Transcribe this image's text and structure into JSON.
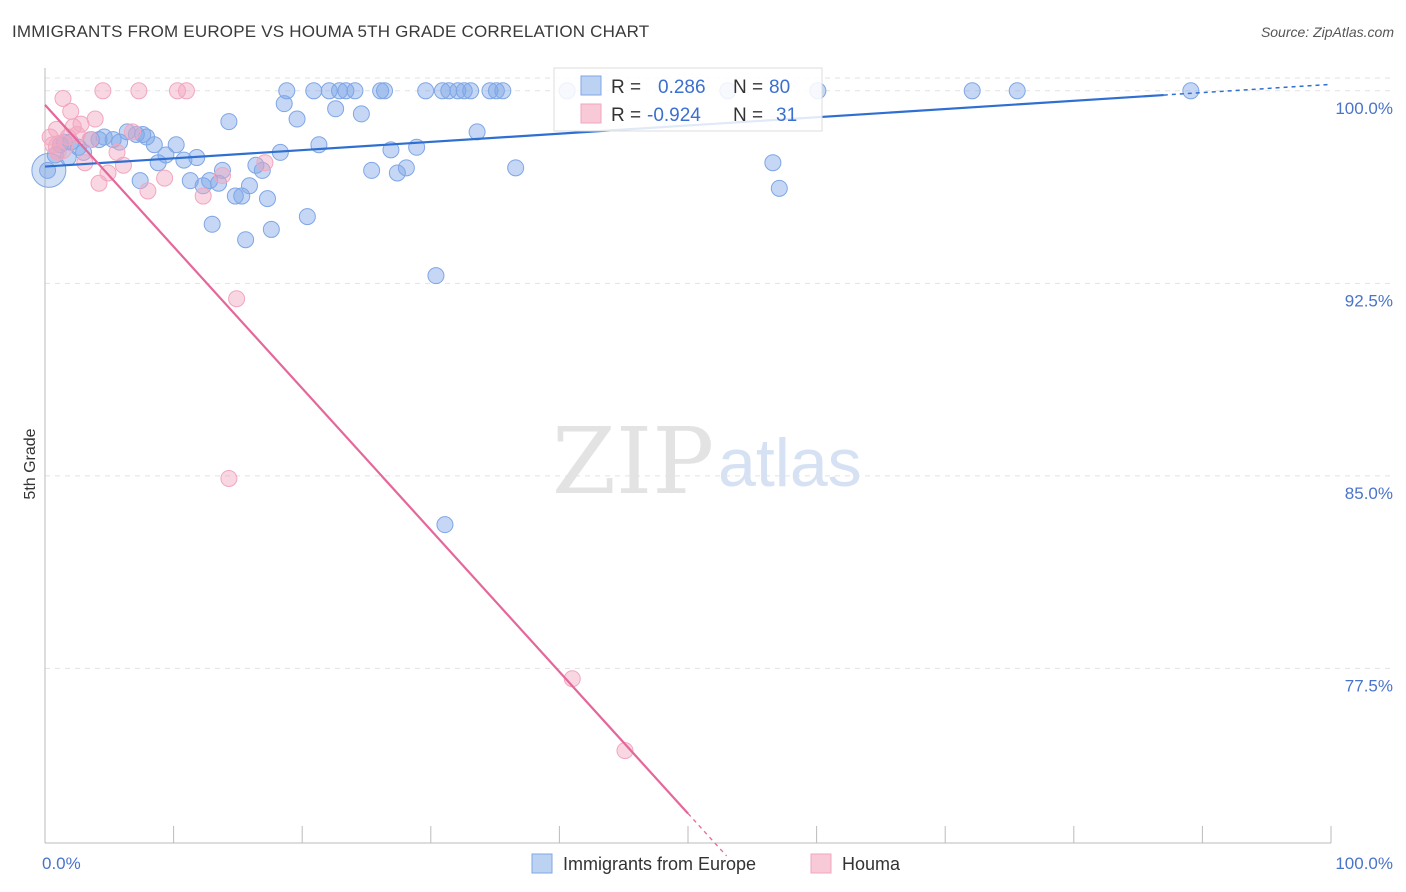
{
  "title": "IMMIGRANTS FROM EUROPE VS HOUMA 5TH GRADE CORRELATION CHART",
  "source": "Source: ZipAtlas.com",
  "watermark": {
    "zip": "ZIP",
    "atlas": "atlas"
  },
  "colors": {
    "blue": "#7fa6e6",
    "blue_line": "#2f6fd1",
    "pink": "#f2a7bf",
    "pink_line": "#e5679a",
    "grid": "#e2e2e2",
    "label": "#4a74c9"
  },
  "stats": {
    "r_label": "R =",
    "n_label": "N =",
    "blue": {
      "r": "0.286",
      "n": "80"
    },
    "pink": {
      "r": "-0.924",
      "n": "31"
    }
  },
  "chart_data": {
    "type": "scatter",
    "xlabel": "",
    "ylabel": "5th Grade",
    "xlim": [
      0,
      100
    ],
    "ylim": [
      70.7,
      101.2
    ],
    "x_tick_labels": [
      "0.0%",
      "100.0%"
    ],
    "y_ticks": [
      77.5,
      85.0,
      92.5,
      100.0
    ],
    "y_tick_labels": [
      "77.5%",
      "85.0%",
      "92.5%",
      "100.0%"
    ],
    "grid": "horizontal dashed",
    "legend": "bottom-center",
    "series": [
      {
        "name": "Immigrants from Europe",
        "color": "#7fa6e6",
        "trend": {
          "x0": 0,
          "y0": 97.05,
          "x1": 100,
          "y1": 100.25,
          "dashed_from": 87
        },
        "points": [
          [
            0.2,
            96.9
          ],
          [
            0.8,
            97.5
          ],
          [
            1.2,
            97.9
          ],
          [
            1.5,
            98.0
          ],
          [
            1.8,
            97.4
          ],
          [
            2.0,
            98.0
          ],
          [
            2.6,
            97.8
          ],
          [
            3.0,
            97.6
          ],
          [
            3.6,
            98.1
          ],
          [
            4.2,
            98.1
          ],
          [
            4.6,
            98.2
          ],
          [
            5.3,
            98.1
          ],
          [
            5.8,
            98.0
          ],
          [
            6.4,
            98.4
          ],
          [
            7.1,
            98.3
          ],
          [
            7.4,
            96.5
          ],
          [
            7.6,
            98.3
          ],
          [
            7.9,
            98.2
          ],
          [
            8.5,
            97.9
          ],
          [
            8.8,
            97.2
          ],
          [
            9.4,
            97.5
          ],
          [
            10.2,
            97.9
          ],
          [
            10.8,
            97.3
          ],
          [
            11.3,
            96.5
          ],
          [
            11.8,
            97.4
          ],
          [
            12.3,
            96.3
          ],
          [
            12.8,
            96.5
          ],
          [
            13.5,
            96.4
          ],
          [
            13.0,
            94.8
          ],
          [
            13.8,
            96.9
          ],
          [
            14.3,
            98.8
          ],
          [
            14.8,
            95.9
          ],
          [
            15.3,
            95.9
          ],
          [
            15.6,
            94.2
          ],
          [
            15.9,
            96.3
          ],
          [
            16.4,
            97.1
          ],
          [
            16.9,
            96.9
          ],
          [
            17.3,
            95.8
          ],
          [
            17.6,
            94.6
          ],
          [
            18.3,
            97.6
          ],
          [
            18.6,
            99.5
          ],
          [
            18.8,
            100.0
          ],
          [
            19.6,
            98.9
          ],
          [
            20.4,
            95.1
          ],
          [
            20.9,
            100.0
          ],
          [
            21.3,
            97.9
          ],
          [
            22.1,
            100.0
          ],
          [
            22.6,
            99.3
          ],
          [
            22.9,
            100.0
          ],
          [
            23.4,
            100.0
          ],
          [
            24.1,
            100.0
          ],
          [
            24.6,
            99.1
          ],
          [
            25.4,
            96.9
          ],
          [
            26.1,
            100.0
          ],
          [
            26.4,
            100.0
          ],
          [
            26.9,
            97.7
          ],
          [
            27.4,
            96.8
          ],
          [
            28.1,
            97.0
          ],
          [
            28.9,
            97.8
          ],
          [
            29.6,
            100.0
          ],
          [
            30.4,
            92.8
          ],
          [
            30.9,
            100.0
          ],
          [
            31.4,
            100.0
          ],
          [
            32.1,
            100.0
          ],
          [
            32.6,
            100.0
          ],
          [
            33.1,
            100.0
          ],
          [
            33.6,
            98.4
          ],
          [
            34.6,
            100.0
          ],
          [
            35.1,
            100.0
          ],
          [
            35.6,
            100.0
          ],
          [
            36.6,
            97.0
          ],
          [
            40.6,
            100.0
          ],
          [
            53.1,
            100.0
          ],
          [
            56.6,
            97.2
          ],
          [
            57.1,
            96.2
          ],
          [
            60.1,
            100.0
          ],
          [
            72.1,
            100.0
          ],
          [
            75.6,
            100.0
          ],
          [
            89.1,
            100.0
          ],
          [
            31.1,
            83.1
          ]
        ]
      },
      {
        "name": "Houma",
        "color": "#f2a7bf",
        "trend": {
          "x0": 0,
          "y0": 99.45,
          "x1": 50,
          "y1": 71.85,
          "dashed_to": 53
        },
        "points": [
          [
            0.4,
            98.2
          ],
          [
            0.6,
            97.9
          ],
          [
            0.9,
            98.5
          ],
          [
            1.4,
            99.7
          ],
          [
            1.8,
            98.2
          ],
          [
            2.0,
            99.2
          ],
          [
            2.2,
            98.6
          ],
          [
            2.5,
            98.3
          ],
          [
            2.8,
            98.7
          ],
          [
            3.1,
            97.2
          ],
          [
            3.5,
            98.1
          ],
          [
            3.9,
            98.9
          ],
          [
            4.2,
            96.4
          ],
          [
            4.5,
            100.0
          ],
          [
            4.9,
            96.8
          ],
          [
            5.6,
            97.6
          ],
          [
            6.1,
            97.1
          ],
          [
            6.8,
            98.4
          ],
          [
            7.3,
            100.0
          ],
          [
            8.0,
            96.1
          ],
          [
            9.3,
            96.6
          ],
          [
            10.3,
            100.0
          ],
          [
            11.0,
            100.0
          ],
          [
            12.3,
            95.9
          ],
          [
            13.8,
            96.7
          ],
          [
            14.9,
            91.9
          ],
          [
            17.1,
            97.2
          ],
          [
            14.3,
            84.9
          ],
          [
            41.0,
            77.1
          ],
          [
            45.1,
            74.3
          ],
          [
            1.0,
            97.6
          ]
        ]
      }
    ]
  }
}
